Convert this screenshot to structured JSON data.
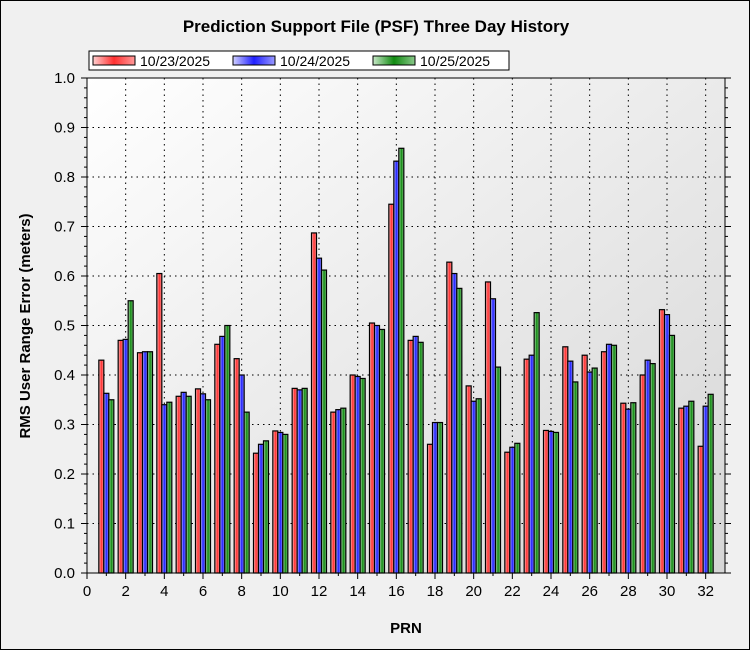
{
  "chart_data": {
    "type": "bar",
    "title": "Prediction Support File (PSF) Three Day History",
    "xlabel": "PRN",
    "ylabel": "RMS User Range Error (meters)",
    "xlim": [
      0,
      33
    ],
    "ylim": [
      0,
      1.0
    ],
    "xticks": [
      "0",
      "2",
      "4",
      "6",
      "8",
      "10",
      "12",
      "14",
      "16",
      "18",
      "20",
      "22",
      "24",
      "26",
      "28",
      "30",
      "32"
    ],
    "yticks": [
      "0.0",
      "0.1",
      "0.2",
      "0.3",
      "0.4",
      "0.5",
      "0.6",
      "0.7",
      "0.8",
      "0.9",
      "1.0"
    ],
    "grid": true,
    "legend_position": "top",
    "categories": [
      1,
      2,
      3,
      4,
      5,
      6,
      7,
      8,
      9,
      10,
      11,
      12,
      13,
      14,
      15,
      16,
      17,
      18,
      19,
      20,
      21,
      22,
      23,
      24,
      25,
      26,
      27,
      28,
      29,
      30,
      31,
      32
    ],
    "series": [
      {
        "name": "10/23/2025",
        "color": "#ff0000",
        "values": [
          0.43,
          0.47,
          0.445,
          0.605,
          0.357,
          0.372,
          0.462,
          0.433,
          0.242,
          0.287,
          0.373,
          0.687,
          0.325,
          0.4,
          0.505,
          0.745,
          0.47,
          0.26,
          0.628,
          0.378,
          0.588,
          0.244,
          0.432,
          0.288,
          0.457,
          0.44,
          0.447,
          0.343,
          0.4,
          0.532,
          0.333,
          0.256
        ]
      },
      {
        "name": "10/24/2025",
        "color": "#0000ff",
        "values": [
          0.363,
          0.472,
          0.447,
          0.34,
          0.365,
          0.362,
          0.478,
          0.4,
          0.26,
          0.284,
          0.37,
          0.636,
          0.33,
          0.397,
          0.5,
          0.832,
          0.478,
          0.304,
          0.605,
          0.347,
          0.554,
          0.254,
          0.44,
          0.286,
          0.428,
          0.406,
          0.462,
          0.331,
          0.43,
          0.522,
          0.337,
          0.337
        ]
      },
      {
        "name": "10/25/2025",
        "color": "#008000",
        "values": [
          0.35,
          0.55,
          0.447,
          0.345,
          0.357,
          0.35,
          0.5,
          0.325,
          0.267,
          0.28,
          0.373,
          0.612,
          0.333,
          0.393,
          0.492,
          0.858,
          0.466,
          0.304,
          0.575,
          0.352,
          0.416,
          0.262,
          0.526,
          0.284,
          0.386,
          0.414,
          0.46,
          0.344,
          0.423,
          0.48,
          0.347,
          0.361
        ]
      }
    ]
  }
}
